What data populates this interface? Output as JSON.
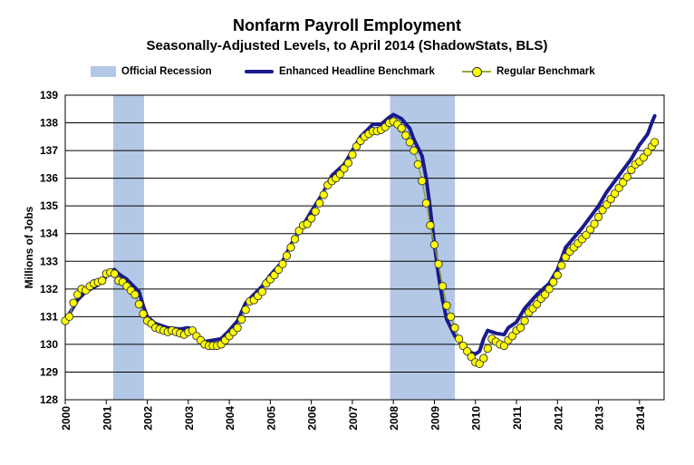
{
  "chart_data": {
    "type": "line",
    "title": "Nonfarm Payroll Employment",
    "subtitle": "Seasonally-Adjusted Levels, to April 2014 (ShadowStats, BLS)",
    "ylabel": "Millions of Jobs",
    "xlabel": "",
    "ylim": [
      128,
      139
    ],
    "yticks": [
      "128",
      "129",
      "130",
      "131",
      "132",
      "133",
      "134",
      "135",
      "136",
      "137",
      "138",
      "139"
    ],
    "xticks": [
      "2000",
      "2001",
      "2002",
      "2003",
      "2004",
      "2005",
      "2006",
      "2007",
      "2008",
      "2009",
      "2010",
      "2011",
      "2012",
      "2013",
      "2014"
    ],
    "xlim": [
      2000.0,
      2014.6
    ],
    "grid": true,
    "legend_position": "top",
    "legend": [
      {
        "label": "Official Recession",
        "kind": "band",
        "color": "#b3c8e6"
      },
      {
        "label": "Enhanced Headline Benchmark",
        "kind": "line",
        "color": "#1a1a8c"
      },
      {
        "label": "Regular Benchmark",
        "kind": "line-markers",
        "color": "#ffff00"
      }
    ],
    "recessions": [
      {
        "start": 2001.17,
        "end": 2001.92
      },
      {
        "start": 2007.92,
        "end": 2009.5
      }
    ],
    "series": [
      {
        "name": "Enhanced Headline Benchmark",
        "color": "#1a1a8c",
        "points": [
          [
            2000.0,
            130.9
          ],
          [
            2000.1,
            131.1
          ],
          [
            2000.3,
            131.6
          ],
          [
            2000.5,
            131.9
          ],
          [
            2000.8,
            132.15
          ],
          [
            2000.9,
            132.3
          ],
          [
            2001.0,
            132.45
          ],
          [
            2001.1,
            132.65
          ],
          [
            2001.2,
            132.7
          ],
          [
            2001.3,
            132.55
          ],
          [
            2001.5,
            132.35
          ],
          [
            2001.8,
            131.9
          ],
          [
            2001.9,
            131.4
          ],
          [
            2002.0,
            131.0
          ],
          [
            2002.2,
            130.75
          ],
          [
            2002.5,
            130.6
          ],
          [
            2002.8,
            130.55
          ],
          [
            2003.0,
            130.6
          ],
          [
            2003.1,
            130.5
          ],
          [
            2003.2,
            130.3
          ],
          [
            2003.4,
            130.1
          ],
          [
            2003.6,
            130.15
          ],
          [
            2003.8,
            130.2
          ],
          [
            2004.0,
            130.5
          ],
          [
            2004.2,
            130.85
          ],
          [
            2004.4,
            131.5
          ],
          [
            2004.6,
            131.8
          ],
          [
            2004.8,
            132.1
          ],
          [
            2005.0,
            132.5
          ],
          [
            2005.3,
            133.0
          ],
          [
            2005.5,
            133.6
          ],
          [
            2005.8,
            134.3
          ],
          [
            2006.0,
            134.8
          ],
          [
            2006.3,
            135.5
          ],
          [
            2006.5,
            136.1
          ],
          [
            2006.8,
            136.5
          ],
          [
            2007.0,
            137.0
          ],
          [
            2007.2,
            137.5
          ],
          [
            2007.5,
            137.95
          ],
          [
            2007.7,
            137.95
          ],
          [
            2007.9,
            138.2
          ],
          [
            2008.0,
            138.3
          ],
          [
            2008.2,
            138.15
          ],
          [
            2008.4,
            137.8
          ],
          [
            2008.5,
            137.4
          ],
          [
            2008.7,
            136.8
          ],
          [
            2008.8,
            136.0
          ],
          [
            2008.9,
            134.9
          ],
          [
            2009.0,
            133.6
          ],
          [
            2009.1,
            132.5
          ],
          [
            2009.2,
            131.6
          ],
          [
            2009.3,
            130.9
          ],
          [
            2009.5,
            130.3
          ],
          [
            2009.7,
            129.95
          ],
          [
            2009.9,
            129.7
          ],
          [
            2010.0,
            129.65
          ],
          [
            2010.1,
            129.75
          ],
          [
            2010.2,
            130.2
          ],
          [
            2010.3,
            130.5
          ],
          [
            2010.5,
            130.4
          ],
          [
            2010.7,
            130.35
          ],
          [
            2010.8,
            130.6
          ],
          [
            2011.0,
            130.8
          ],
          [
            2011.2,
            131.3
          ],
          [
            2011.5,
            131.8
          ],
          [
            2011.8,
            132.2
          ],
          [
            2012.0,
            132.7
          ],
          [
            2012.2,
            133.5
          ],
          [
            2012.4,
            133.85
          ],
          [
            2012.6,
            134.2
          ],
          [
            2012.8,
            134.6
          ],
          [
            2013.0,
            135.0
          ],
          [
            2013.2,
            135.5
          ],
          [
            2013.5,
            136.1
          ],
          [
            2013.8,
            136.7
          ],
          [
            2014.0,
            137.2
          ],
          [
            2014.1,
            137.4
          ],
          [
            2014.2,
            137.6
          ],
          [
            2014.3,
            138.0
          ],
          [
            2014.37,
            138.25
          ]
        ]
      },
      {
        "name": "Regular Benchmark",
        "color": "#ffff00",
        "points": [
          [
            2000.0,
            130.85
          ],
          [
            2000.1,
            131.0
          ],
          [
            2000.2,
            131.5
          ],
          [
            2000.3,
            131.8
          ],
          [
            2000.4,
            132.0
          ],
          [
            2000.5,
            131.95
          ],
          [
            2000.6,
            132.1
          ],
          [
            2000.7,
            132.2
          ],
          [
            2000.8,
            132.25
          ],
          [
            2000.9,
            132.3
          ],
          [
            2001.0,
            132.55
          ],
          [
            2001.1,
            132.6
          ],
          [
            2001.2,
            132.55
          ],
          [
            2001.3,
            132.3
          ],
          [
            2001.4,
            132.25
          ],
          [
            2001.5,
            132.1
          ],
          [
            2001.6,
            131.95
          ],
          [
            2001.7,
            131.8
          ],
          [
            2001.8,
            131.45
          ],
          [
            2001.9,
            131.1
          ],
          [
            2002.0,
            130.85
          ],
          [
            2002.1,
            130.75
          ],
          [
            2002.2,
            130.6
          ],
          [
            2002.3,
            130.55
          ],
          [
            2002.4,
            130.5
          ],
          [
            2002.5,
            130.45
          ],
          [
            2002.6,
            130.5
          ],
          [
            2002.7,
            130.45
          ],
          [
            2002.8,
            130.4
          ],
          [
            2002.9,
            130.35
          ],
          [
            2003.0,
            130.45
          ],
          [
            2003.1,
            130.5
          ],
          [
            2003.2,
            130.3
          ],
          [
            2003.3,
            130.15
          ],
          [
            2003.4,
            130.0
          ],
          [
            2003.5,
            129.95
          ],
          [
            2003.6,
            129.95
          ],
          [
            2003.7,
            129.95
          ],
          [
            2003.8,
            130.0
          ],
          [
            2003.9,
            130.15
          ],
          [
            2004.0,
            130.3
          ],
          [
            2004.1,
            130.45
          ],
          [
            2004.2,
            130.6
          ],
          [
            2004.3,
            130.9
          ],
          [
            2004.4,
            131.25
          ],
          [
            2004.5,
            131.55
          ],
          [
            2004.6,
            131.6
          ],
          [
            2004.7,
            131.75
          ],
          [
            2004.8,
            131.9
          ],
          [
            2004.9,
            132.2
          ],
          [
            2005.0,
            132.35
          ],
          [
            2005.1,
            132.5
          ],
          [
            2005.2,
            132.7
          ],
          [
            2005.3,
            132.9
          ],
          [
            2005.4,
            133.2
          ],
          [
            2005.5,
            133.5
          ],
          [
            2005.6,
            133.8
          ],
          [
            2005.7,
            134.1
          ],
          [
            2005.8,
            134.3
          ],
          [
            2005.9,
            134.35
          ],
          [
            2006.0,
            134.55
          ],
          [
            2006.1,
            134.8
          ],
          [
            2006.2,
            135.1
          ],
          [
            2006.3,
            135.4
          ],
          [
            2006.4,
            135.75
          ],
          [
            2006.5,
            135.9
          ],
          [
            2006.6,
            136.0
          ],
          [
            2006.7,
            136.15
          ],
          [
            2006.8,
            136.35
          ],
          [
            2006.9,
            136.55
          ],
          [
            2007.0,
            136.85
          ],
          [
            2007.1,
            137.15
          ],
          [
            2007.2,
            137.35
          ],
          [
            2007.3,
            137.5
          ],
          [
            2007.4,
            137.6
          ],
          [
            2007.5,
            137.7
          ],
          [
            2007.6,
            137.7
          ],
          [
            2007.7,
            137.75
          ],
          [
            2007.8,
            137.85
          ],
          [
            2007.9,
            138.0
          ],
          [
            2008.0,
            138.05
          ],
          [
            2008.1,
            137.95
          ],
          [
            2008.2,
            137.8
          ],
          [
            2008.3,
            137.55
          ],
          [
            2008.4,
            137.3
          ],
          [
            2008.5,
            137.0
          ],
          [
            2008.6,
            136.5
          ],
          [
            2008.7,
            135.9
          ],
          [
            2008.8,
            135.1
          ],
          [
            2008.9,
            134.3
          ],
          [
            2009.0,
            133.6
          ],
          [
            2009.1,
            132.9
          ],
          [
            2009.2,
            132.1
          ],
          [
            2009.3,
            131.4
          ],
          [
            2009.4,
            131.0
          ],
          [
            2009.5,
            130.6
          ],
          [
            2009.6,
            130.2
          ],
          [
            2009.7,
            129.95
          ],
          [
            2009.8,
            129.75
          ],
          [
            2009.9,
            129.55
          ],
          [
            2010.0,
            129.35
          ],
          [
            2010.1,
            129.3
          ],
          [
            2010.2,
            129.5
          ],
          [
            2010.3,
            129.85
          ],
          [
            2010.4,
            130.2
          ],
          [
            2010.5,
            130.1
          ],
          [
            2010.6,
            130.0
          ],
          [
            2010.7,
            129.95
          ],
          [
            2010.8,
            130.15
          ],
          [
            2010.9,
            130.3
          ],
          [
            2011.0,
            130.5
          ],
          [
            2011.1,
            130.6
          ],
          [
            2011.2,
            130.85
          ],
          [
            2011.3,
            131.15
          ],
          [
            2011.4,
            131.3
          ],
          [
            2011.5,
            131.45
          ],
          [
            2011.6,
            131.65
          ],
          [
            2011.7,
            131.8
          ],
          [
            2011.8,
            132.0
          ],
          [
            2011.9,
            132.25
          ],
          [
            2012.0,
            132.5
          ],
          [
            2012.1,
            132.85
          ],
          [
            2012.2,
            133.15
          ],
          [
            2012.3,
            133.35
          ],
          [
            2012.4,
            133.5
          ],
          [
            2012.5,
            133.65
          ],
          [
            2012.6,
            133.8
          ],
          [
            2012.7,
            133.95
          ],
          [
            2012.8,
            134.15
          ],
          [
            2012.9,
            134.35
          ],
          [
            2013.0,
            134.6
          ],
          [
            2013.1,
            134.85
          ],
          [
            2013.2,
            135.05
          ],
          [
            2013.3,
            135.25
          ],
          [
            2013.4,
            135.45
          ],
          [
            2013.5,
            135.65
          ],
          [
            2013.6,
            135.85
          ],
          [
            2013.7,
            136.05
          ],
          [
            2013.8,
            136.3
          ],
          [
            2013.9,
            136.5
          ],
          [
            2014.0,
            136.6
          ],
          [
            2014.1,
            136.75
          ],
          [
            2014.2,
            136.95
          ],
          [
            2014.3,
            137.15
          ],
          [
            2014.37,
            137.3
          ]
        ]
      }
    ]
  }
}
